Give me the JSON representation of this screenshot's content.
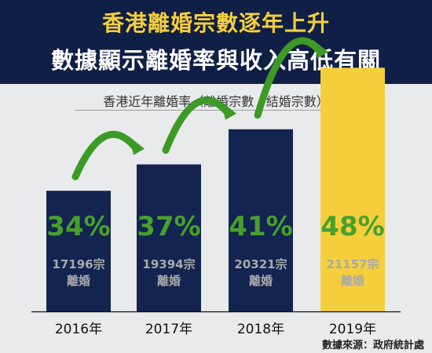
{
  "header": {
    "title_line1": "香港離婚宗數逐年上升",
    "title_line2": "數據顯示離婚率與收入高低有關"
  },
  "source": "數據來源：政府統計處",
  "colors": {
    "navy": "#0f1f45",
    "title_yellow": "#f5cf3b",
    "bar_default": "#142450",
    "bar_highlight": "#f5cf3b",
    "percent_green": "#48a02c",
    "arrow_green": "#3d9a26",
    "count_gray": "#a9a9ab"
  },
  "chart_data": {
    "type": "bar",
    "title": "香港近年離婚率（離婚宗數 / 結婚宗數）",
    "categories": [
      "2016年",
      "2017年",
      "2018年",
      "2019年"
    ],
    "values": [
      34,
      37,
      41,
      48
    ],
    "value_labels": [
      "34%",
      "37%",
      "41%",
      "48%"
    ],
    "divorce_counts": [
      "17196宗",
      "19394宗",
      "20321宗",
      "21157宗"
    ],
    "count_suffix": "離婚",
    "highlight_index": 3
  }
}
